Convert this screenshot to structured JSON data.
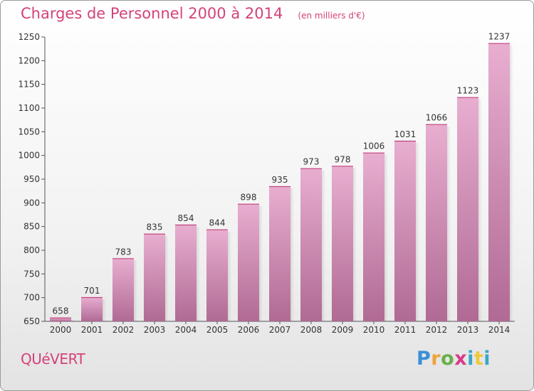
{
  "header": {
    "title": "Charges de Personnel 2000 à 2014",
    "unit": "(en milliers d'€)"
  },
  "footer": {
    "commune": "QUéVERT",
    "logo_text": "Proxiti"
  },
  "colors": {
    "accent": "#d4427a",
    "bar_top": "#e8aed0",
    "bar_bottom": "#b06a94"
  },
  "chart_data": {
    "type": "bar",
    "title": "Charges de Personnel 2000 à 2014",
    "subtitle": "(en milliers d'€)",
    "xlabel": "",
    "ylabel": "",
    "categories": [
      "2000",
      "2001",
      "2002",
      "2003",
      "2004",
      "2005",
      "2006",
      "2007",
      "2008",
      "2009",
      "2010",
      "2011",
      "2012",
      "2013",
      "2014"
    ],
    "values": [
      658,
      701,
      783,
      835,
      854,
      844,
      898,
      935,
      973,
      978,
      1006,
      1031,
      1066,
      1123,
      1237
    ],
    "ylim": [
      650,
      1250
    ],
    "yticks": [
      650,
      700,
      750,
      800,
      850,
      900,
      950,
      1000,
      1050,
      1100,
      1150,
      1200,
      1250
    ],
    "grid": false,
    "legend": "none"
  }
}
